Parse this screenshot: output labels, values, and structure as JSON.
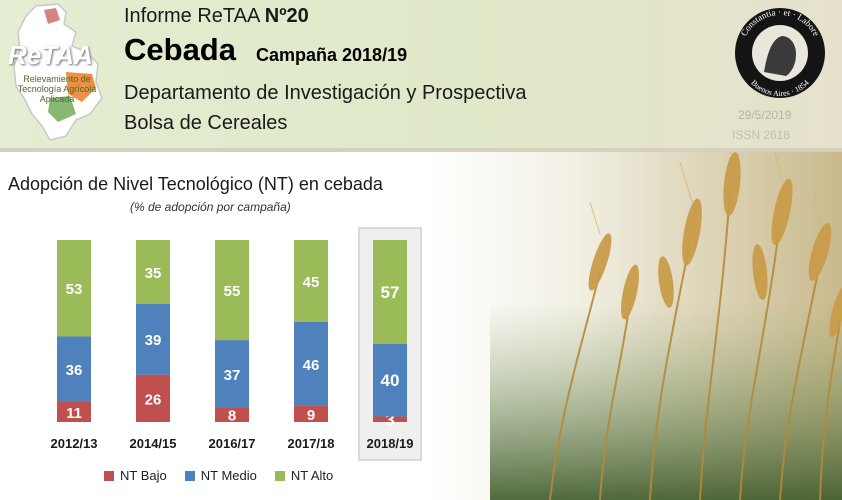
{
  "header": {
    "logo": {
      "word": "ReTAA",
      "subtitle": "Relevamiento de Tecnología Agrícola Aplicada"
    },
    "report_prefix": "Informe ReTAA ",
    "report_number": "Nº20",
    "crop": "Cebada",
    "campaign": "Campaña 2018/19",
    "department": "Departamento de Investigación y Prospectiva",
    "institution": "Bolsa de Cereales",
    "seal": {
      "top_text": "Constantia · et · Labore",
      "bottom_text": "Buenos Aires · 1854"
    },
    "date": "29/5/2019",
    "issn": "ISSN 2618"
  },
  "colors": {
    "nt_bajo": "#c0504d",
    "nt_medio": "#4f81bd",
    "nt_alto": "#9bbb59",
    "highlight_box": "#d9d9d9"
  },
  "chart_data": {
    "type": "bar",
    "stacked": true,
    "title": "Adopción de Nivel Tecnológico (NT) en cebada",
    "subtitle": "(% de adopción por campaña)",
    "categories": [
      "2012/13",
      "2014/15",
      "2016/17",
      "2017/18",
      "2018/19"
    ],
    "highlighted_category": "2018/19",
    "series": [
      {
        "name": "NT Bajo",
        "values": [
          11,
          26,
          8,
          9,
          3
        ]
      },
      {
        "name": "NT Medio",
        "values": [
          36,
          39,
          37,
          46,
          40
        ]
      },
      {
        "name": "NT Alto",
        "values": [
          53,
          35,
          55,
          45,
          57
        ]
      }
    ],
    "ylim": [
      0,
      100
    ],
    "grid": false,
    "legend": "bottom"
  }
}
